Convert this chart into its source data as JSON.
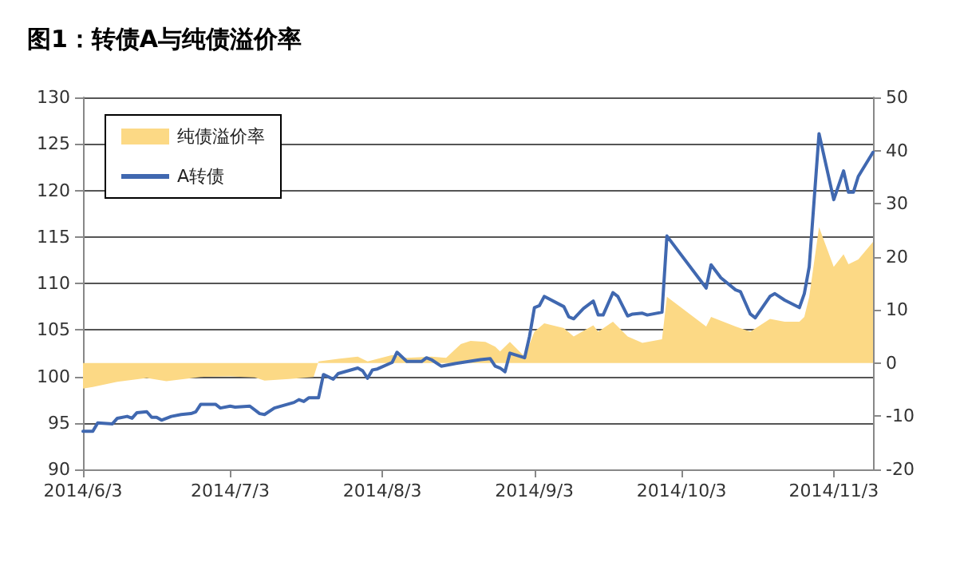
{
  "chart_data": {
    "type": "line",
    "title": "图1：转债A与纯债溢价率",
    "xlim": [
      "2014-06-03",
      "2014-11-11"
    ],
    "xticks": [
      {
        "value": "2014-06-03",
        "label": "2014/6/3"
      },
      {
        "value": "2014-07-03",
        "label": "2014/7/3"
      },
      {
        "value": "2014-08-03",
        "label": "2014/8/3"
      },
      {
        "value": "2014-09-03",
        "label": "2014/9/3"
      },
      {
        "value": "2014-10-03",
        "label": "2014/10/3"
      },
      {
        "value": "2014-11-03",
        "label": "2014/11/3"
      }
    ],
    "ylim": [
      90,
      130
    ],
    "yticks": [
      90,
      95,
      100,
      105,
      110,
      115,
      120,
      125,
      130
    ],
    "y2lim": [
      -20,
      50
    ],
    "y2ticks": [
      -20,
      -10,
      0,
      10,
      20,
      30,
      40,
      50
    ],
    "grid": "y",
    "legend": "top left",
    "marker": "none",
    "line_style": "solid",
    "series": [
      {
        "name": "纯债溢价率",
        "type": "area",
        "axis": "y2",
        "color": "#fcd985",
        "x": [
          "2014-06-03",
          "2014-06-05",
          "2014-06-10",
          "2014-06-16",
          "2014-06-20",
          "2014-06-27",
          "2014-07-03",
          "2014-07-08",
          "2014-07-10",
          "2014-07-15",
          "2014-07-20",
          "2014-07-21",
          "2014-07-25",
          "2014-07-29",
          "2014-07-31",
          "2014-08-05",
          "2014-08-08",
          "2014-08-13",
          "2014-08-16",
          "2014-08-19",
          "2014-08-21",
          "2014-08-24",
          "2014-08-26",
          "2014-08-27",
          "2014-08-29",
          "2014-09-01",
          "2014-09-03",
          "2014-09-05",
          "2014-09-09",
          "2014-09-11",
          "2014-09-15",
          "2014-09-16",
          "2014-09-19",
          "2014-09-22",
          "2014-09-25",
          "2014-09-29",
          "2014-09-30",
          "2014-10-08",
          "2014-10-09",
          "2014-10-14",
          "2014-10-17",
          "2014-10-21",
          "2014-10-24",
          "2014-10-27",
          "2014-10-28",
          "2014-10-29",
          "2014-10-31",
          "2014-11-03",
          "2014-11-05",
          "2014-11-06",
          "2014-11-08",
          "2014-11-11"
        ],
        "values": [
          -4.8,
          -4.5,
          -3.5,
          -2.8,
          -3.4,
          -2.6,
          -2.5,
          -2.7,
          -3.3,
          -3.0,
          -2.6,
          0.3,
          0.8,
          1.2,
          0.3,
          1.5,
          1.0,
          1.2,
          1.0,
          3.6,
          4.2,
          4.0,
          3.1,
          2.2,
          4.0,
          1.2,
          5.9,
          7.5,
          6.6,
          5.0,
          7.1,
          5.9,
          7.8,
          5.0,
          3.8,
          4.5,
          12.5,
          6.9,
          8.7,
          6.9,
          5.9,
          8.3,
          7.8,
          7.8,
          8.7,
          12.5,
          25.6,
          18.1,
          20.5,
          18.6,
          19.5,
          22.8
        ]
      },
      {
        "name": "A转债",
        "color": "#4068b0",
        "x": [
          "2014-06-03",
          "2014-06-05",
          "2014-06-06",
          "2014-06-09",
          "2014-06-10",
          "2014-06-12",
          "2014-06-13",
          "2014-06-14",
          "2014-06-16",
          "2014-06-17",
          "2014-06-18",
          "2014-06-19",
          "2014-06-21",
          "2014-06-23",
          "2014-06-25",
          "2014-06-26",
          "2014-06-27",
          "2014-06-30",
          "2014-07-01",
          "2014-07-03",
          "2014-07-04",
          "2014-07-07",
          "2014-07-09",
          "2014-07-10",
          "2014-07-12",
          "2014-07-14",
          "2014-07-16",
          "2014-07-17",
          "2014-07-18",
          "2014-07-19",
          "2014-07-21",
          "2014-07-22",
          "2014-07-24",
          "2014-07-25",
          "2014-07-29",
          "2014-07-30",
          "2014-07-31",
          "2014-08-01",
          "2014-08-02",
          "2014-08-05",
          "2014-08-06",
          "2014-08-08",
          "2014-08-11",
          "2014-08-12",
          "2014-08-13",
          "2014-08-15",
          "2014-08-18",
          "2014-08-23",
          "2014-08-25",
          "2014-08-26",
          "2014-08-27",
          "2014-08-28",
          "2014-08-29",
          "2014-09-01",
          "2014-09-02",
          "2014-09-03",
          "2014-09-04",
          "2014-09-05",
          "2014-09-09",
          "2014-09-10",
          "2014-09-11",
          "2014-09-13",
          "2014-09-15",
          "2014-09-16",
          "2014-09-17",
          "2014-09-19",
          "2014-09-20",
          "2014-09-22",
          "2014-09-23",
          "2014-09-25",
          "2014-09-26",
          "2014-09-29",
          "2014-09-30",
          "2014-10-08",
          "2014-10-09",
          "2014-10-11",
          "2014-10-14",
          "2014-10-15",
          "2014-10-17",
          "2014-10-18",
          "2014-10-21",
          "2014-10-22",
          "2014-10-24",
          "2014-10-27",
          "2014-10-28",
          "2014-10-29",
          "2014-10-31",
          "2014-11-03",
          "2014-11-05",
          "2014-11-06",
          "2014-11-07",
          "2014-11-08",
          "2014-11-11"
        ],
        "values": [
          94.1,
          94.1,
          95.0,
          94.9,
          95.5,
          95.7,
          95.5,
          96.1,
          96.2,
          95.6,
          95.6,
          95.3,
          95.7,
          95.9,
          96.0,
          96.2,
          97.0,
          97.0,
          96.6,
          96.8,
          96.7,
          96.8,
          96.0,
          95.9,
          96.6,
          96.9,
          97.2,
          97.5,
          97.3,
          97.7,
          97.7,
          100.2,
          99.7,
          100.3,
          100.9,
          100.6,
          99.8,
          100.7,
          100.8,
          101.5,
          102.6,
          101.6,
          101.6,
          102.0,
          101.8,
          101.1,
          101.4,
          101.8,
          101.9,
          101.1,
          100.9,
          100.5,
          102.5,
          102.0,
          104.3,
          107.4,
          107.6,
          108.6,
          107.5,
          106.4,
          106.2,
          107.3,
          108.1,
          106.6,
          106.6,
          109.0,
          108.6,
          106.5,
          106.7,
          106.8,
          106.6,
          106.9,
          115.1,
          109.5,
          112.0,
          110.6,
          109.3,
          109.1,
          106.7,
          106.3,
          108.6,
          108.9,
          108.2,
          107.4,
          108.9,
          111.8,
          126.1,
          119.0,
          122.1,
          119.8,
          119.8,
          121.5,
          124.1
        ]
      }
    ]
  }
}
